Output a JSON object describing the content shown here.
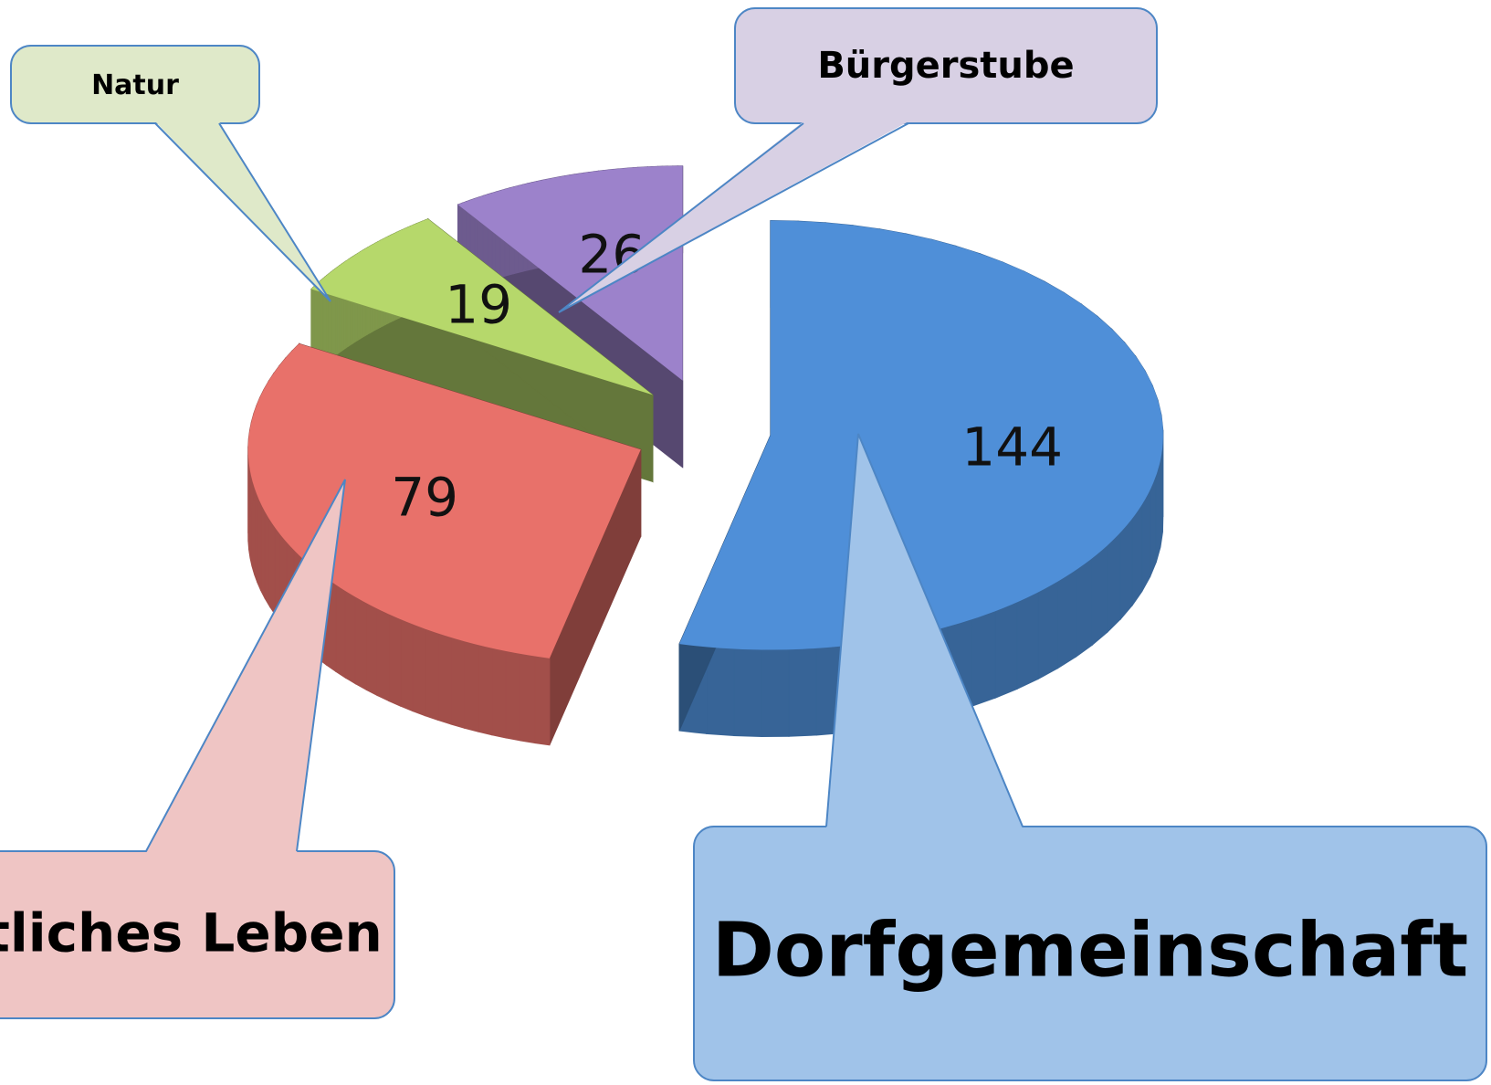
{
  "chart_data": {
    "type": "pie",
    "categories": [
      "Dorfgemeinschaft",
      "tliches Leben",
      "Natur",
      "Bürgerstube"
    ],
    "values": [
      144,
      79,
      19,
      26
    ],
    "colors": [
      "#4f8fd8",
      "#e8716a",
      "#b6d86b",
      "#9c82cb"
    ]
  }
}
